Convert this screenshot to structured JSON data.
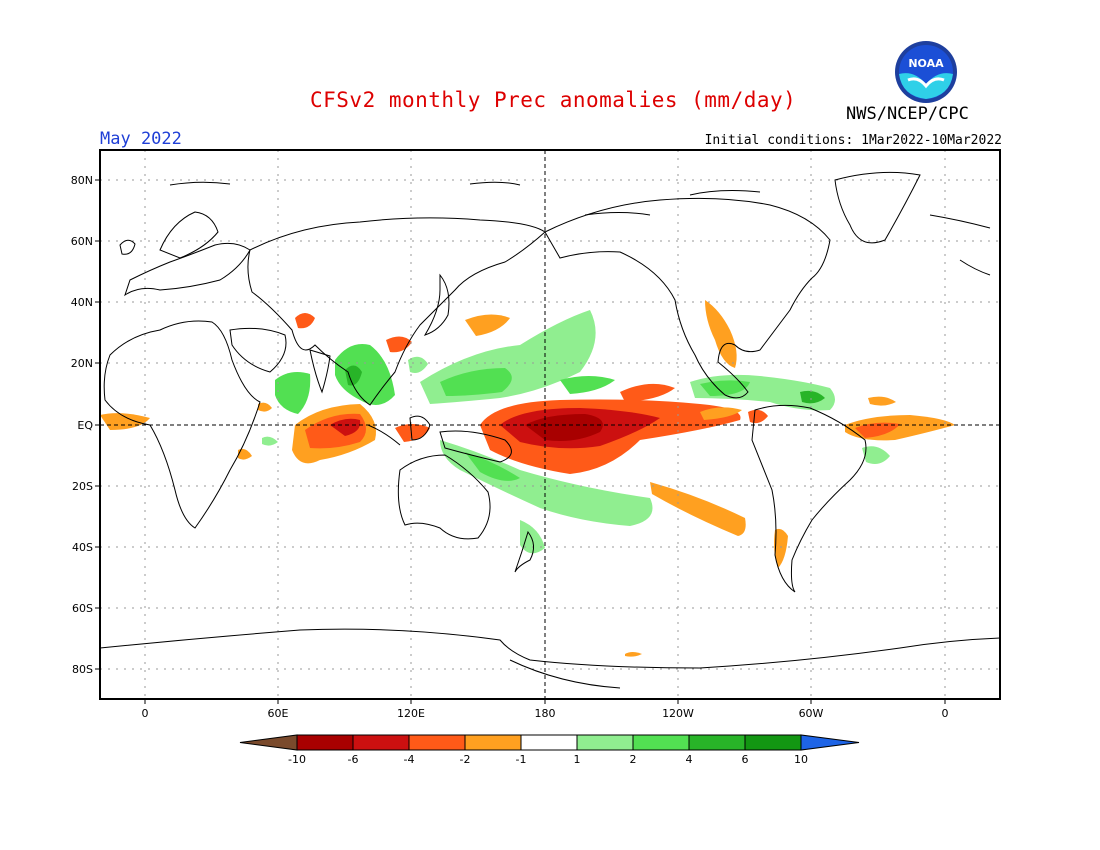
{
  "title": "CFSv2 monthly Prec anomalies (mm/day)",
  "agency": "NWS/NCEP/CPC",
  "logo_text": "NOAA",
  "valid_month": "May 2022",
  "initial_conditions": "Initial conditions: 1Mar2022-10Mar2022",
  "lat_labels": [
    "80N",
    "60N",
    "40N",
    "20N",
    "EQ",
    "20S",
    "40S",
    "60S",
    "80S"
  ],
  "lon_labels": [
    "0",
    "60E",
    "120E",
    "180",
    "120W",
    "60W",
    "0"
  ],
  "colorbar": {
    "labels": [
      "-10",
      "-6",
      "-4",
      "-2",
      "-1",
      "1",
      "2",
      "4",
      "6",
      "10"
    ],
    "colors": [
      "#7a4a2c",
      "#a80000",
      "#cc1010",
      "#ff5a18",
      "#ffa020",
      "#ffffff",
      "#90ee90",
      "#52e052",
      "#28b428",
      "#129612",
      "#1e64e6"
    ]
  },
  "colors": {
    "land_outline": "#000000",
    "grid": "#999999",
    "title": "#dd0000",
    "month": "#1f3fd6"
  }
}
